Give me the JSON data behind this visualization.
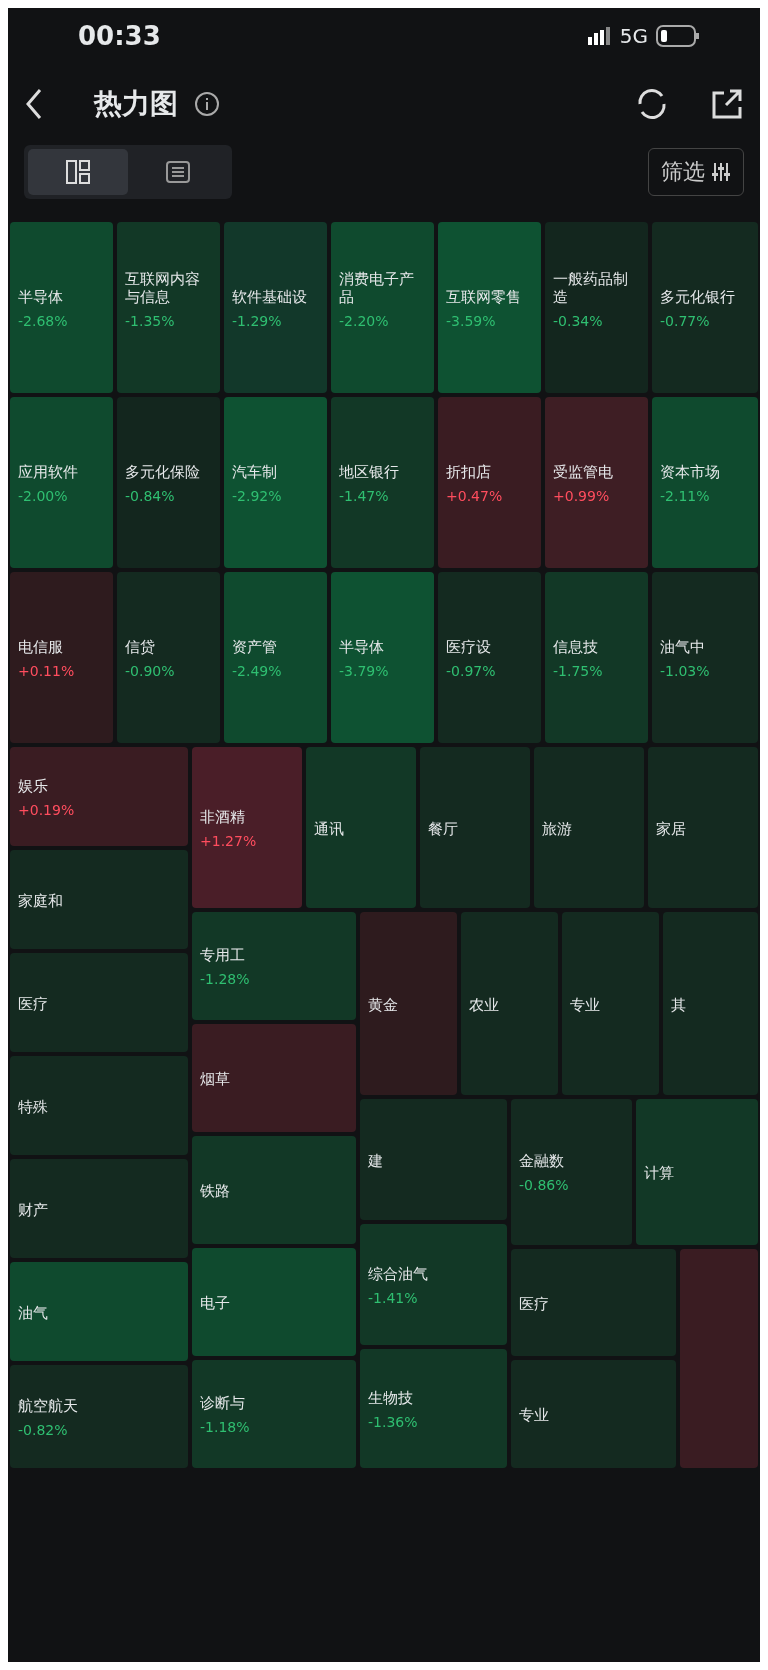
{
  "chart_data": {
    "type": "other",
    "title": "热力图",
    "annotations": [
      "00:33",
      "5G",
      "筛选"
    ],
    "categories": [
      "半导体",
      "互联网内容与信息",
      "软件基础设",
      "消费电子产品",
      "互联网零售",
      "一般药品制造",
      "多元化银行",
      "应用软件",
      "多元化保险",
      "汽车制",
      "地区银行",
      "折扣店",
      "受监管电",
      "资本市场",
      "电信服",
      "信贷",
      "资产管",
      "半导体",
      "医疗设",
      "信息技",
      "油气中",
      "娱乐",
      "家庭和",
      "医疗",
      "特殊",
      "财产",
      "油气",
      "航空航天",
      "非酒精",
      "通讯",
      "餐厅",
      "旅游",
      "家居",
      "专用工",
      "烟草",
      "铁路",
      "电子",
      "诊断与",
      "黄金",
      "农业",
      "专业",
      "其",
      "建",
      "综合油气",
      "生物技",
      "金融数",
      "计算",
      "医疗",
      "专业",
      null
    ],
    "values": [
      -2.68,
      -1.35,
      -1.29,
      -2.2,
      -3.59,
      -0.34,
      -0.77,
      -2.0,
      -0.84,
      -2.92,
      -1.47,
      0.47,
      0.99,
      -2.11,
      0.11,
      -0.9,
      -2.49,
      -3.79,
      -0.97,
      -1.75,
      -1.03,
      0.19,
      null,
      null,
      null,
      null,
      null,
      -0.82,
      1.27,
      null,
      null,
      null,
      null,
      -1.28,
      null,
      null,
      null,
      -1.18,
      null,
      null,
      null,
      null,
      null,
      -1.41,
      -1.36,
      -0.86,
      null,
      null,
      null,
      null
    ],
    "value_labels": [
      "-2.68%",
      "-1.35%",
      "-1.29%",
      "-2.20%",
      "-3.59%",
      "-0.34%",
      "-0.77%",
      "-2.00%",
      "-0.84%",
      "-2.92%",
      "-1.47%",
      "+0.47%",
      "+0.99%",
      "-2.11%",
      "+0.11%",
      "-0.90%",
      "-2.49%",
      "-3.79%",
      "-0.97%",
      "-1.75%",
      "-1.03%",
      "+0.19%",
      null,
      null,
      null,
      null,
      null,
      "-0.82%",
      "+1.27%",
      null,
      null,
      null,
      null,
      "-1.28%",
      null,
      null,
      null,
      "-1.18%",
      null,
      null,
      null,
      null,
      null,
      "-1.41%",
      "-1.36%",
      "-0.86%",
      null,
      null,
      null,
      null
    ],
    "colors": [
      "#0f4a2e",
      "#123826",
      "#12382a",
      "#0f4a2e",
      "#0e5232",
      "#13261e",
      "#142a20",
      "#0f4a2e",
      "#13261e",
      "#0e5232",
      "#123826",
      "#3a1c22",
      "#3e1e24",
      "#0f4a2e",
      "#2e1b1e",
      "#142a20",
      "#0f4a2e",
      "#0e5232",
      "#142a20",
      "#123826",
      "#142a20",
      "#3a1c22",
      "#142a20",
      "#142a20",
      "#142a20",
      "#142a20",
      "#0f4a2e",
      "#142a20",
      "#4a1e28",
      "#123826",
      "#142a20",
      "#142a20",
      "#142a20",
      "#123826",
      "#3a1c22",
      "#123826",
      "#0f4a2e",
      "#123826",
      "#2e1b1e",
      "#142a20",
      "#142a20",
      "#142a20",
      "#142a20",
      "#123826",
      "#123826",
      "#142a20",
      "#123826",
      "#142a20",
      "#142a20",
      "#3a1c22"
    ]
  }
}
